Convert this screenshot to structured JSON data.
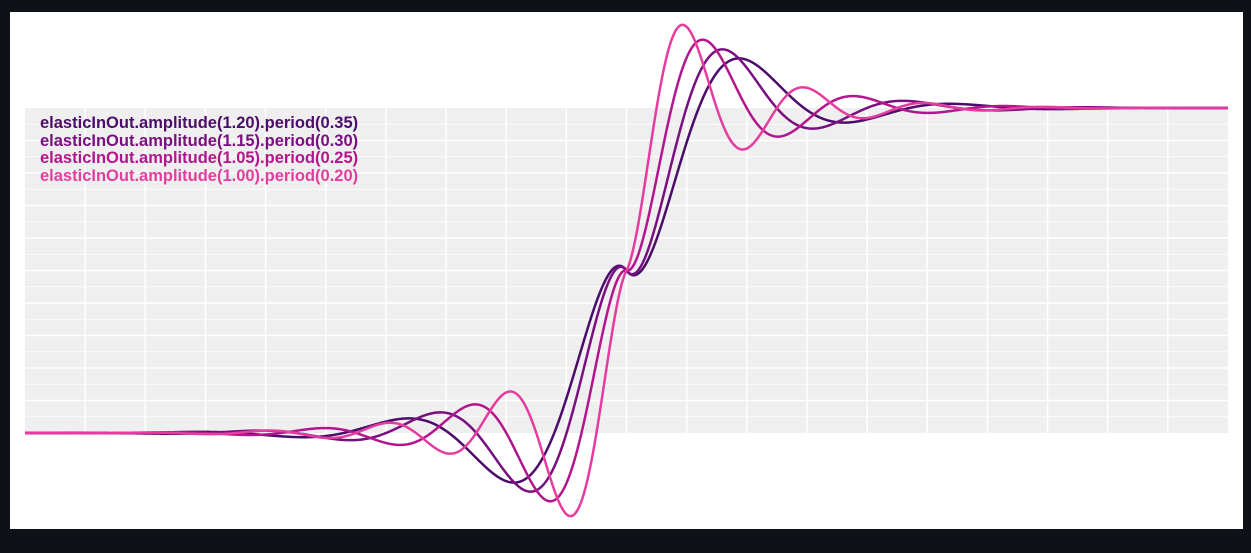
{
  "chart_data": {
    "type": "line",
    "title": "",
    "xlabel": "",
    "ylabel": "",
    "xlim": [
      0,
      1
    ],
    "ylim": [
      0,
      1
    ],
    "grid": true,
    "legend_position": "top-left",
    "series": [
      {
        "name": "elasticInOut.amplitude(1.20).period(0.35)",
        "amplitude": 1.2,
        "period": 0.35,
        "color": "#4b0c6b"
      },
      {
        "name": "elasticInOut.amplitude(1.15).period(0.30)",
        "amplitude": 1.15,
        "period": 0.3,
        "color": "#7a0f80"
      },
      {
        "name": "elasticInOut.amplitude(1.05).period(0.25)",
        "amplitude": 1.05,
        "period": 0.25,
        "color": "#b3168c"
      },
      {
        "name": "elasticInOut.amplitude(1.00).period(0.20)",
        "amplitude": 1.0,
        "period": 0.2,
        "color": "#e43d9f"
      }
    ]
  },
  "colors": {
    "background": "#0f1118",
    "panel": "#ffffff",
    "plot_area": "#efefef",
    "grid": "#ffffff"
  }
}
